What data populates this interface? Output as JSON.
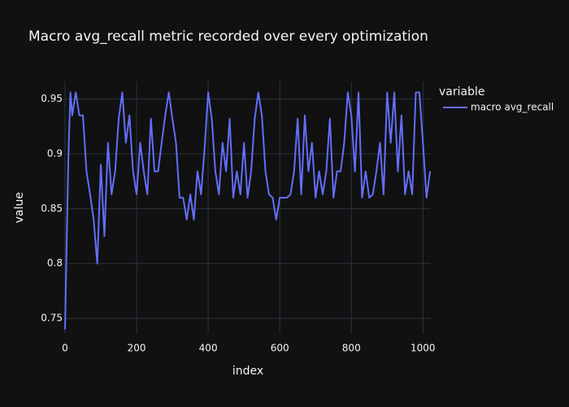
{
  "chart_data": {
    "type": "line",
    "title": "Macro avg_recall metric recorded over every optimization",
    "x_label": "index",
    "y_label": "value",
    "legend_title": "variable",
    "legend_position": "right",
    "grid": true,
    "xlim": [
      0,
      1022
    ],
    "ylim": [
      0.736,
      0.966
    ],
    "xticks": [
      0,
      200,
      400,
      600,
      800,
      1000
    ],
    "yticks": [
      0.75,
      0.8,
      0.85,
      0.9,
      0.95
    ],
    "x": [
      0,
      5,
      10,
      15,
      20,
      30,
      40,
      50,
      60,
      70,
      80,
      90,
      100,
      110,
      120,
      130,
      140,
      150,
      160,
      170,
      180,
      190,
      200,
      210,
      220,
      230,
      240,
      250,
      260,
      270,
      280,
      290,
      300,
      310,
      320,
      330,
      340,
      350,
      360,
      370,
      380,
      390,
      400,
      410,
      420,
      430,
      440,
      450,
      460,
      470,
      480,
      490,
      500,
      510,
      520,
      530,
      540,
      550,
      560,
      570,
      580,
      590,
      600,
      610,
      620,
      630,
      640,
      650,
      660,
      670,
      680,
      690,
      700,
      710,
      720,
      730,
      740,
      750,
      760,
      770,
      780,
      790,
      800,
      810,
      820,
      830,
      840,
      850,
      860,
      870,
      880,
      890,
      900,
      910,
      920,
      930,
      940,
      950,
      960,
      970,
      980,
      990,
      1000,
      1010,
      1020
    ],
    "series": [
      {
        "name": "macro avg_recall",
        "color": "#636efa",
        "values": [
          0.74,
          0.825,
          0.905,
          0.956,
          0.935,
          0.956,
          0.935,
          0.935,
          0.884,
          0.863,
          0.84,
          0.8,
          0.89,
          0.825,
          0.91,
          0.863,
          0.884,
          0.932,
          0.956,
          0.91,
          0.935,
          0.884,
          0.863,
          0.91,
          0.884,
          0.863,
          0.932,
          0.884,
          0.884,
          0.91,
          0.935,
          0.956,
          0.932,
          0.91,
          0.86,
          0.86,
          0.84,
          0.863,
          0.84,
          0.884,
          0.863,
          0.905,
          0.956,
          0.932,
          0.884,
          0.863,
          0.91,
          0.884,
          0.932,
          0.86,
          0.884,
          0.863,
          0.91,
          0.86,
          0.884,
          0.932,
          0.956,
          0.935,
          0.884,
          0.863,
          0.86,
          0.84,
          0.86,
          0.86,
          0.86,
          0.863,
          0.884,
          0.932,
          0.863,
          0.935,
          0.884,
          0.91,
          0.86,
          0.884,
          0.863,
          0.884,
          0.932,
          0.86,
          0.884,
          0.884,
          0.91,
          0.956,
          0.935,
          0.884,
          0.956,
          0.86,
          0.884,
          0.86,
          0.863,
          0.884,
          0.91,
          0.863,
          0.956,
          0.91,
          0.956,
          0.884,
          0.935,
          0.863,
          0.884,
          0.863,
          0.956,
          0.956,
          0.91,
          0.86,
          0.884
        ]
      }
    ]
  }
}
